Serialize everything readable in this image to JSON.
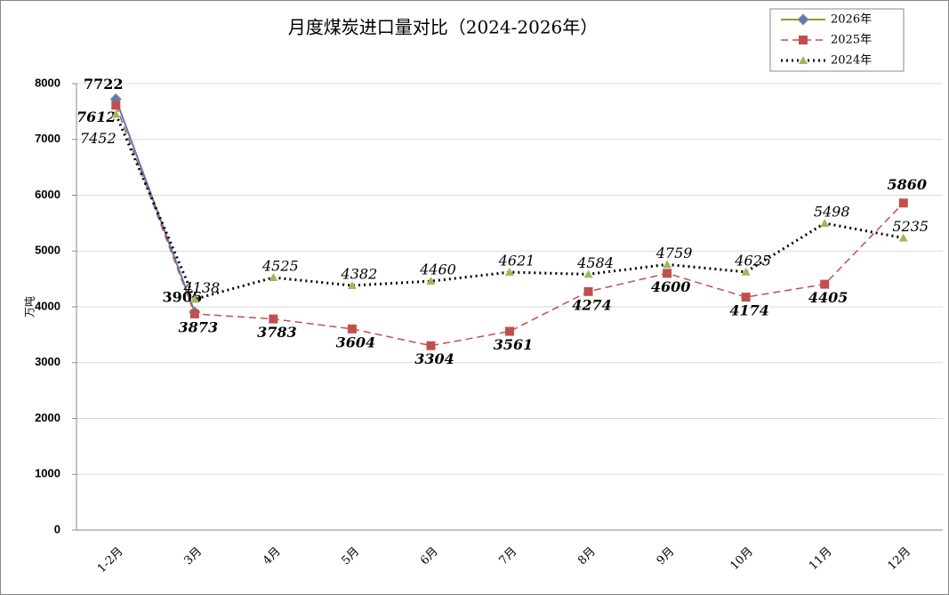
{
  "chart_data": {
    "type": "line",
    "title": "月度煤炭进口量对比（2024-2026年）",
    "y_label": "万吨",
    "categories": [
      "1-2月",
      "3月",
      "4月",
      "5月",
      "6月",
      "7月",
      "8月",
      "9月",
      "10月",
      "11月",
      "12月"
    ],
    "series": [
      {
        "name": "2026年",
        "color": "#5b7bb6",
        "marker": "diamond",
        "dash": "solid",
        "values": [
          7722,
          3906,
          null,
          null,
          null,
          null,
          null,
          null,
          null,
          null,
          null
        ]
      },
      {
        "name": "2025年",
        "color": "#c0504d",
        "marker": "square",
        "dash": "dashed",
        "values": [
          7612,
          3873,
          3783,
          3604,
          3304,
          3561,
          4274,
          4600,
          4174,
          4405,
          5860
        ]
      },
      {
        "name": "2024年",
        "color": "#000000",
        "marker": "triangle",
        "marker_color": "#9bbb59",
        "dash": "dotted",
        "values": [
          7452,
          4138,
          4525,
          4382,
          4460,
          4621,
          4584,
          4759,
          4625,
          5498,
          5235
        ]
      }
    ],
    "ylim": [
      0,
      8000
    ],
    "yticks": [
      0,
      1000,
      2000,
      3000,
      4000,
      5000,
      6000,
      7000,
      8000
    ],
    "grid": true,
    "legend": "top-right"
  }
}
